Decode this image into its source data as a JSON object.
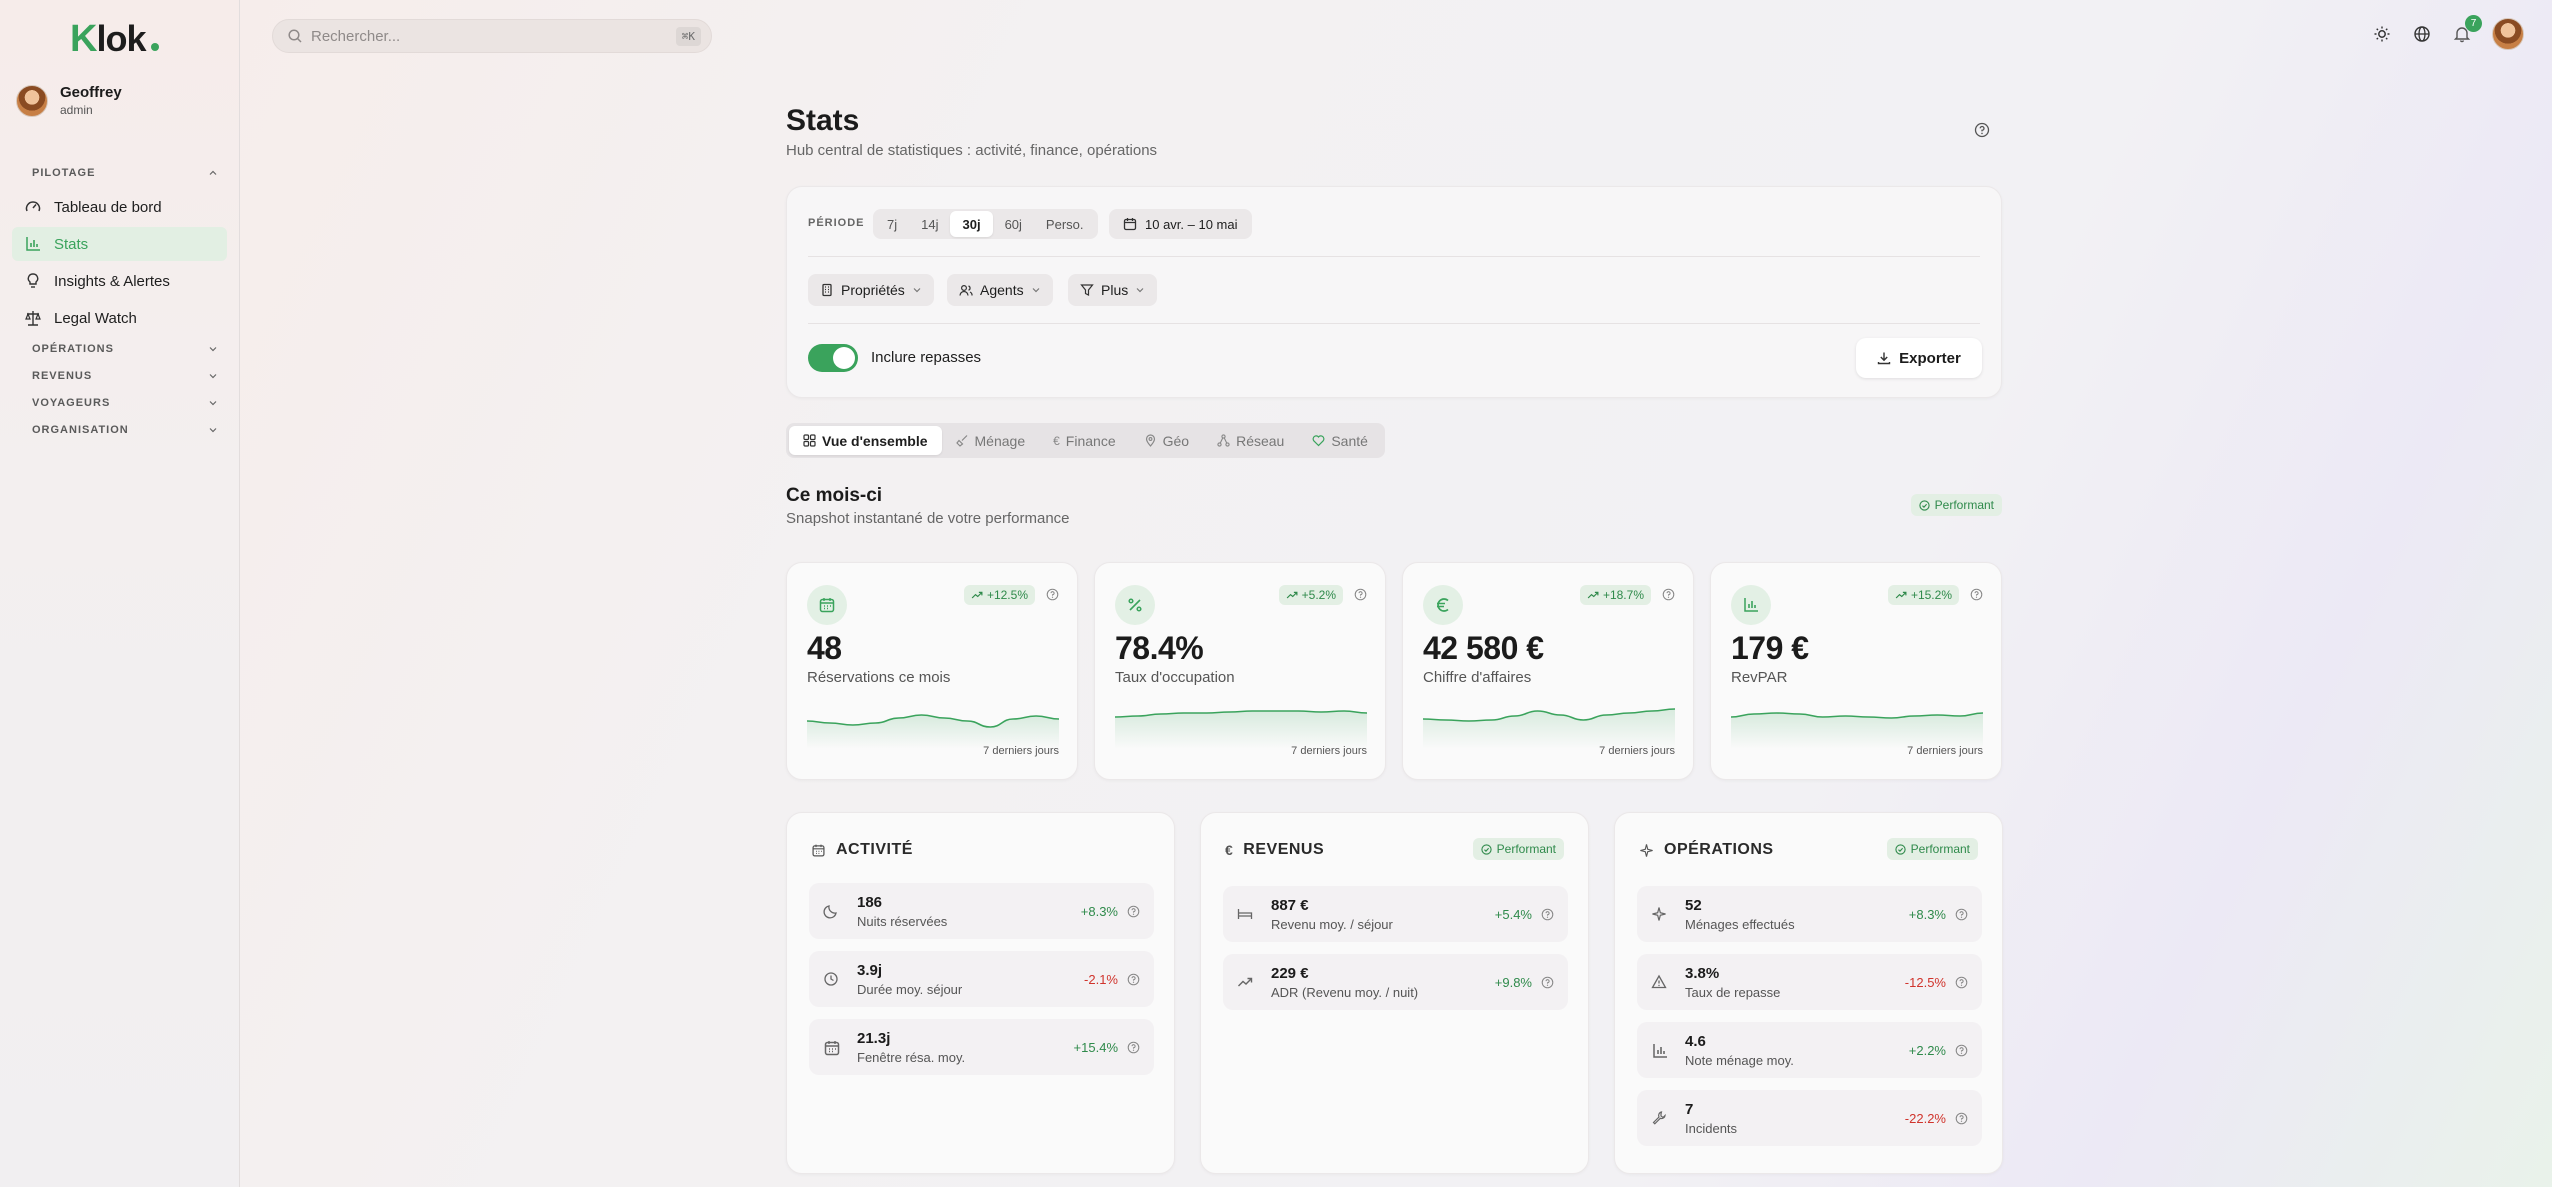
{
  "brand": {
    "logo_k": "K",
    "logo_rest": "lok"
  },
  "user": {
    "name": "Geoffrey",
    "role": "admin"
  },
  "sidebar": {
    "groups": [
      {
        "label": "PILOTAGE"
      },
      {
        "label": "OPÉRATIONS"
      },
      {
        "label": "REVENUS"
      },
      {
        "label": "VOYAGEURS"
      },
      {
        "label": "ORGANISATION"
      }
    ],
    "items": [
      {
        "label": "Tableau de bord",
        "icon": "gauge-icon"
      },
      {
        "label": "Stats",
        "icon": "bar-chart-icon",
        "active": true
      },
      {
        "label": "Insights & Alertes",
        "icon": "lightbulb-icon"
      },
      {
        "label": "Legal Watch",
        "icon": "scale-icon"
      }
    ]
  },
  "search": {
    "placeholder": "Rechercher...",
    "shortcut": "⌘K"
  },
  "topbar": {
    "notification_count": "7"
  },
  "page": {
    "title": "Stats",
    "subtitle": "Hub central de statistiques : activité, finance, opérations"
  },
  "filters": {
    "period_label": "PÉRIODE",
    "periods": [
      "7j",
      "14j",
      "30j",
      "60j",
      "Perso."
    ],
    "active_period": "30j",
    "date_range": "10 avr. – 10 mai",
    "dropdowns": [
      "Propriétés",
      "Agents",
      "Plus"
    ],
    "toggle_label": "Inclure repasses",
    "toggle_on": true,
    "export_label": "Exporter"
  },
  "tabs": [
    "Vue d'ensemble",
    "Ménage",
    "Finance",
    "Géo",
    "Réseau",
    "Santé"
  ],
  "section": {
    "title": "Ce mois-ci",
    "subtitle": "Snapshot instantané de votre performance",
    "badge": "Performant"
  },
  "kpis": [
    {
      "value": "48",
      "label": "Réservations ce mois",
      "trend": "+12.5%",
      "foot": "7 derniers jours",
      "icon": "calendar-icon",
      "spark": [
        22,
        24,
        26,
        24,
        19,
        16,
        19,
        22,
        28,
        20,
        17,
        20
      ]
    },
    {
      "value": "78.4%",
      "label": "Taux d'occupation",
      "trend": "+5.2%",
      "foot": "7 derniers jours",
      "icon": "percent-icon",
      "spark": [
        18,
        17,
        15,
        14,
        14,
        13,
        12,
        12,
        12,
        13,
        12,
        14
      ]
    },
    {
      "value": "42 580 €",
      "label": "Chiffre d'affaires",
      "trend": "+18.7%",
      "foot": "7 derniers jours",
      "icon": "euro-icon",
      "spark": [
        20,
        21,
        22,
        21,
        17,
        12,
        16,
        21,
        16,
        14,
        12,
        10
      ]
    },
    {
      "value": "179 €",
      "label": "RevPAR",
      "trend": "+15.2%",
      "foot": "7 derniers jours",
      "icon": "bar-chart-icon",
      "spark": [
        18,
        15,
        14,
        15,
        18,
        17,
        18,
        19,
        17,
        16,
        17,
        14
      ]
    }
  ],
  "categories": [
    {
      "title": "ACTIVITÉ",
      "icon": "calendar-icon",
      "badge": "",
      "rows": [
        {
          "value": "186",
          "label": "Nuits réservées",
          "delta": "+8.3%",
          "icon": "moon-icon"
        },
        {
          "value": "3.9j",
          "label": "Durée moy. séjour",
          "delta": "-2.1%",
          "icon": "clock-icon"
        },
        {
          "value": "21.3j",
          "label": "Fenêtre résa. moy.",
          "delta": "+15.4%",
          "icon": "calendar-icon"
        }
      ]
    },
    {
      "title": "REVENUS",
      "icon": "euro-icon",
      "badge": "Performant",
      "rows": [
        {
          "value": "887 €",
          "label": "Revenu moy. / séjour",
          "delta": "+5.4%",
          "icon": "bed-icon"
        },
        {
          "value": "229 €",
          "label": "ADR (Revenu moy. / nuit)",
          "delta": "+9.8%",
          "icon": "trend-up-icon"
        }
      ]
    },
    {
      "title": "OPÉRATIONS",
      "icon": "sparkles-icon",
      "badge": "Performant",
      "rows": [
        {
          "value": "52",
          "label": "Ménages effectués",
          "delta": "+8.3%",
          "icon": "sparkles-icon"
        },
        {
          "value": "3.8%",
          "label": "Taux de repasse",
          "delta": "-12.5%",
          "icon": "warning-icon"
        },
        {
          "value": "4.6",
          "label": "Note ménage moy.",
          "delta": "+2.2%",
          "icon": "bar-chart-icon"
        },
        {
          "value": "7",
          "label": "Incidents",
          "delta": "-22.2%",
          "icon": "wrench-icon"
        }
      ]
    }
  ],
  "colors": {
    "accent": "#3aa35c",
    "negative": "#d0342c",
    "positive": "#2f8a4b"
  }
}
